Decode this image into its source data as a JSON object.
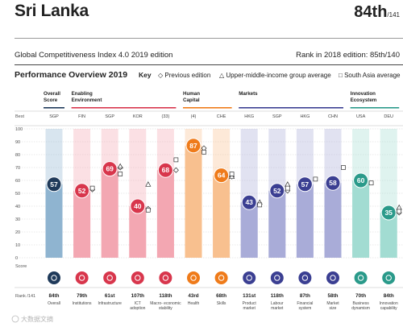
{
  "header": {
    "country": "Sri Lanka",
    "rank": "84th",
    "rank_of": "/141",
    "edition": "Global Competitiveness Index 4.0 2019 edition",
    "prev_rank": "Rank in 2018 edition: 85th/140"
  },
  "overview": {
    "title": "Performance Overview 2019",
    "key_label": "Key",
    "legend_prev": "Previous edition",
    "legend_upper": "Upper-middle-income group average",
    "legend_south": "South Asia average"
  },
  "axis": {
    "best_label": "Best",
    "score_label": "Score",
    "rank_label": "Rank /141",
    "ticks": [
      "100",
      "90",
      "80",
      "70",
      "60",
      "50",
      "40",
      "30",
      "20",
      "10",
      "0"
    ]
  },
  "groups": [
    {
      "label": "Overall Score",
      "color": "#1f3a5a"
    },
    {
      "label": "Enabling Environment",
      "color": "#d8364c"
    },
    {
      "label": "Human Capital",
      "color": "#ef7b1a"
    },
    {
      "label": "Markets",
      "color": "#3b3f92"
    },
    {
      "label": "Innovation Ecosystem",
      "color": "#2a9a8a"
    }
  ],
  "watermark": "大数据文摘",
  "chart_data": {
    "type": "bar",
    "title": "Performance Overview 2019",
    "ylim": [
      0,
      100
    ],
    "categories": [
      "Overall",
      "Institutions",
      "Infrastructure",
      "ICT adoption",
      "Macro-economic stability",
      "Health",
      "Skills",
      "Product market",
      "Labour market",
      "Financial system",
      "Market size",
      "Business dynamism",
      "Innovation capability"
    ],
    "category_labels": [
      "Overall",
      "Institutions",
      "Infrastructure",
      "ICT adoption",
      "Macro- economic stability",
      "Health",
      "Skills",
      "Product market",
      "Labour market",
      "Financial system",
      "Market size",
      "Business dynamism",
      "Innovation capability"
    ],
    "best": [
      "SGP",
      "FIN",
      "SGP",
      "KOR",
      "(33)",
      "(4)",
      "CHE",
      "HKG",
      "SGP",
      "HKG",
      "CHN",
      "USA",
      "DEU"
    ],
    "values": [
      57,
      52,
      69,
      40,
      68,
      87,
      64,
      43,
      52,
      57,
      58,
      60,
      35
    ],
    "ranks": [
      "84th",
      "79th",
      "61st",
      "107th",
      "118th",
      "43rd",
      "68th",
      "131st",
      "118th",
      "87th",
      "58th",
      "70th",
      "84th"
    ],
    "groups": [
      "Overall Score",
      "Enabling Environment",
      "Enabling Environment",
      "Enabling Environment",
      "Enabling Environment",
      "Human Capital",
      "Human Capital",
      "Markets",
      "Markets",
      "Markets",
      "Markets",
      "Innovation Ecosystem",
      "Innovation Ecosystem"
    ],
    "colors": [
      "#1f3a5a",
      "#d8364c",
      "#d8364c",
      "#d8364c",
      "#d8364c",
      "#ef7b1a",
      "#ef7b1a",
      "#3b3f92",
      "#3b3f92",
      "#3b3f92",
      "#3b3f92",
      "#2a9a8a",
      "#2a9a8a"
    ],
    "light_colors": [
      "#8fb4d0",
      "#f3a7b2",
      "#f3a7b2",
      "#f3a7b2",
      "#f3a7b2",
      "#f8c08f",
      "#f8c08f",
      "#a9acd8",
      "#a9acd8",
      "#a9acd8",
      "#a9acd8",
      "#a2dcd2",
      "#a2dcd2"
    ],
    "previous_edition": [
      null,
      53,
      70,
      38,
      68,
      85,
      63,
      null,
      52,
      null,
      null,
      null,
      35
    ],
    "upper_middle_income_avg": [
      null,
      null,
      71,
      57,
      null,
      null,
      63,
      43,
      57,
      null,
      null,
      null,
      39
    ],
    "south_asia_avg": [
      null,
      54,
      65,
      37,
      76,
      82,
      65,
      41,
      54,
      61,
      70,
      58,
      36
    ]
  }
}
